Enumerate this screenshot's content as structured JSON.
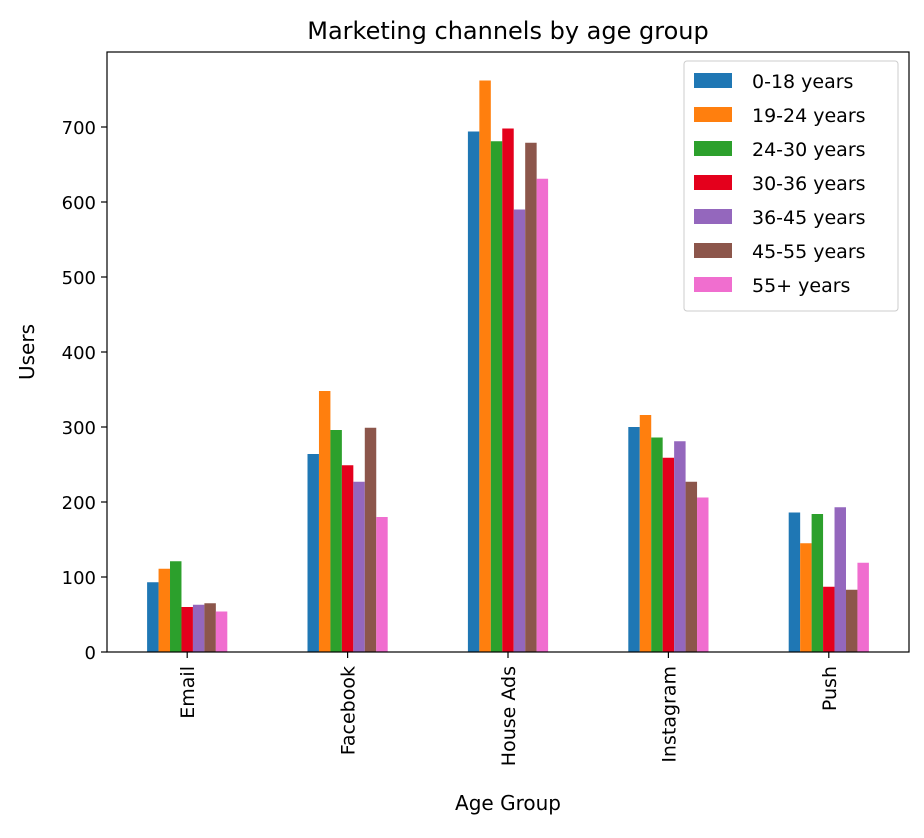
{
  "chart_data": {
    "type": "bar",
    "title": "Marketing channels by age group",
    "xlabel": "Age Group",
    "ylabel": "Users",
    "categories": [
      "Email",
      "Facebook",
      "House Ads",
      "Instagram",
      "Push"
    ],
    "ylim": [
      0,
      800
    ],
    "yticks": [
      0,
      100,
      200,
      300,
      400,
      500,
      600,
      700
    ],
    "grid": false,
    "legend_position": "top-right",
    "series": [
      {
        "name": "0-18 years",
        "color": "#1f77b4",
        "values": [
          93,
          264,
          694,
          300,
          186
        ]
      },
      {
        "name": "19-24 years",
        "color": "#ff7f0e",
        "values": [
          111,
          348,
          762,
          316,
          145
        ]
      },
      {
        "name": "24-30 years",
        "color": "#2ca02c",
        "values": [
          121,
          296,
          681,
          286,
          184
        ]
      },
      {
        "name": "30-36 years",
        "color": "#e4001c",
        "values": [
          60,
          249,
          698,
          259,
          87
        ]
      },
      {
        "name": "36-45 years",
        "color": "#9467bd",
        "values": [
          63,
          227,
          590,
          281,
          193
        ]
      },
      {
        "name": "45-55 years",
        "color": "#8c564b",
        "values": [
          65,
          299,
          679,
          227,
          83
        ]
      },
      {
        "name": "55+ years",
        "color": "#f06ecf",
        "values": [
          54,
          180,
          631,
          206,
          119
        ]
      }
    ]
  }
}
